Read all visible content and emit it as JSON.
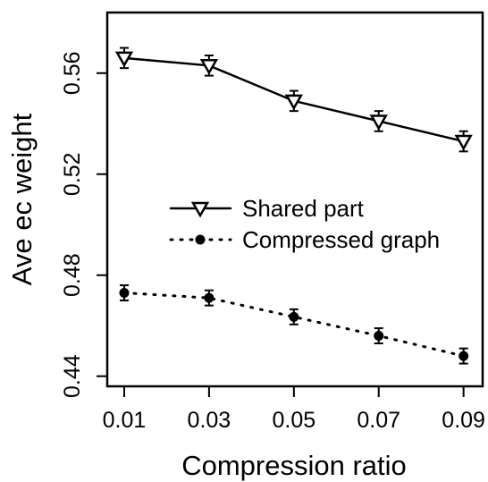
{
  "chart_data": {
    "type": "line",
    "xlabel": "Compression ratio",
    "ylabel": "Ave ec weight",
    "x": [
      0.01,
      0.03,
      0.05,
      0.07,
      0.09
    ],
    "x_tick_labels": [
      "0.01",
      "0.03",
      "0.05",
      "0.07",
      "0.09"
    ],
    "y_ticks": [
      0.44,
      0.48,
      0.52,
      0.56
    ],
    "y_tick_labels": [
      "0.44",
      "0.48",
      "0.52",
      "0.56"
    ],
    "xlim": [
      0.006,
      0.0945
    ],
    "ylim": [
      0.436,
      0.584
    ],
    "grid": false,
    "legend_position": "center-right",
    "series": [
      {
        "name": "Shared part",
        "style": "solid",
        "marker": "triangle-down-open",
        "color": "#000000",
        "values": [
          0.566,
          0.563,
          0.549,
          0.541,
          0.533
        ],
        "error": [
          0.004,
          0.004,
          0.004,
          0.004,
          0.004
        ]
      },
      {
        "name": "Compressed graph",
        "style": "dotted",
        "marker": "filled-circle",
        "color": "#000000",
        "values": [
          0.473,
          0.471,
          0.4635,
          0.456,
          0.448
        ],
        "error": [
          0.003,
          0.003,
          0.003,
          0.003,
          0.003
        ]
      }
    ]
  }
}
